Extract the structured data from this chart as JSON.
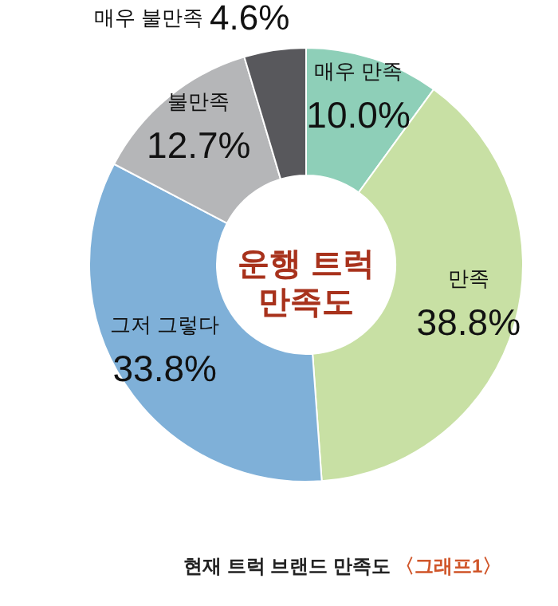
{
  "chart_data": {
    "type": "donut",
    "title": "운행 트럭\n만족도",
    "categories": [
      "매우 만족",
      "만족",
      "그저 그렇다",
      "불만족",
      "매우 불만족"
    ],
    "values": [
      10.0,
      38.8,
      33.8,
      12.7,
      4.6
    ],
    "value_labels": [
      "10.0%",
      "38.8%",
      "33.8%",
      "12.7%",
      "4.6%"
    ],
    "colors": [
      "#8ecfb8",
      "#c8e0a4",
      "#7fb0d8",
      "#b5b6b8",
      "#58585c"
    ],
    "annotations": [
      "현재 트럭 브랜드 만족도",
      "〈그래프1〉"
    ],
    "legend": false
  }
}
